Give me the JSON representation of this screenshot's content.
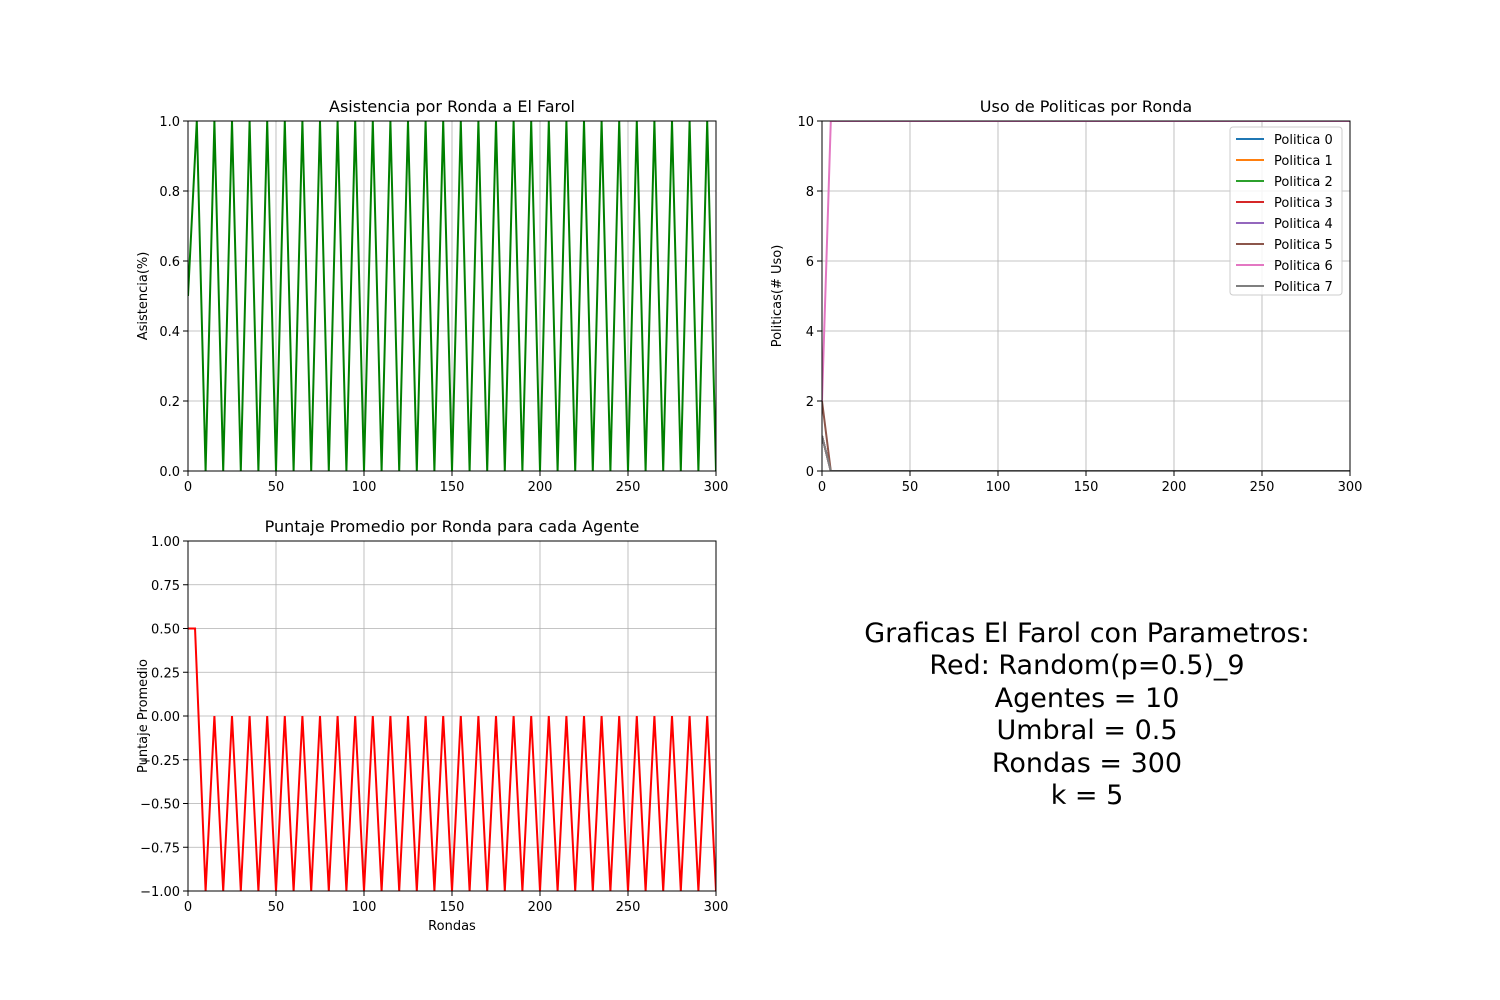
{
  "chart_data": [
    {
      "type": "line",
      "title": "Asistencia por Ronda a El Farol",
      "xlabel": "",
      "ylabel": "Asistencia(%)",
      "xlim": [
        0,
        300
      ],
      "ylim": [
        0,
        1
      ],
      "xticks": [
        0,
        50,
        100,
        150,
        200,
        250,
        300
      ],
      "yticks": [
        0.0,
        0.2,
        0.4,
        0.6,
        0.8,
        1.0
      ],
      "ytick_labels": [
        "0.0",
        "0.2",
        "0.4",
        "0.6",
        "0.8",
        "1.0"
      ],
      "grid": true,
      "series": [
        {
          "color": "#008000",
          "x": [
            0,
            5,
            10,
            15,
            20,
            25,
            30,
            35,
            40,
            45,
            50,
            55,
            60,
            65,
            70,
            75,
            80,
            85,
            90,
            95,
            100,
            105,
            110,
            115,
            120,
            125,
            130,
            135,
            140,
            145,
            150,
            155,
            160,
            165,
            170,
            175,
            180,
            185,
            190,
            195,
            200,
            205,
            210,
            215,
            220,
            225,
            230,
            235,
            240,
            245,
            250,
            255,
            260,
            265,
            270,
            275,
            280,
            285,
            290,
            295,
            300
          ],
          "y": [
            0.5,
            1,
            0,
            1,
            0,
            1,
            0,
            1,
            0,
            1,
            0,
            1,
            0,
            1,
            0,
            1,
            0,
            1,
            0,
            1,
            0,
            1,
            0,
            1,
            0,
            1,
            0,
            1,
            0,
            1,
            0,
            1,
            0,
            1,
            0,
            1,
            0,
            1,
            0,
            1,
            0,
            1,
            0,
            1,
            0,
            1,
            0,
            1,
            0,
            1,
            0,
            1,
            0,
            1,
            0,
            1,
            0,
            1,
            0,
            1,
            0
          ]
        }
      ]
    },
    {
      "type": "line",
      "title": "Uso de Politicas por Ronda",
      "xlabel": "",
      "ylabel": "Politicas(# Uso)",
      "xlim": [
        0,
        300
      ],
      "ylim": [
        0,
        10
      ],
      "xticks": [
        0,
        50,
        100,
        150,
        200,
        250,
        300
      ],
      "yticks": [
        0,
        2,
        4,
        6,
        8,
        10
      ],
      "ytick_labels": [
        "0",
        "2",
        "4",
        "6",
        "8",
        "10"
      ],
      "grid": true,
      "legend": "top-right",
      "series": [
        {
          "name": "Politica 0",
          "color": "#1f77b4",
          "x": [
            0,
            5,
            300
          ],
          "y": [
            1,
            0,
            0
          ]
        },
        {
          "name": "Politica 1",
          "color": "#ff7f0e",
          "x": [
            0,
            5,
            300
          ],
          "y": [
            1,
            0,
            0
          ]
        },
        {
          "name": "Politica 2",
          "color": "#2ca02c",
          "x": [
            0,
            5,
            300
          ],
          "y": [
            1,
            0,
            0
          ]
        },
        {
          "name": "Politica 3",
          "color": "#d62728",
          "x": [
            0,
            5,
            300
          ],
          "y": [
            1,
            0,
            0
          ]
        },
        {
          "name": "Politica 4",
          "color": "#9467bd",
          "x": [
            0,
            5,
            300
          ],
          "y": [
            1,
            0,
            0
          ]
        },
        {
          "name": "Politica 5",
          "color": "#8c564b",
          "x": [
            0,
            5,
            300
          ],
          "y": [
            2,
            0,
            0
          ]
        },
        {
          "name": "Politica 6",
          "color": "#e377c2",
          "x": [
            0,
            5,
            300
          ],
          "y": [
            2,
            10,
            10
          ]
        },
        {
          "name": "Politica 7",
          "color": "#7f7f7f",
          "x": [
            0,
            5,
            300
          ],
          "y": [
            1,
            0,
            0
          ]
        }
      ]
    },
    {
      "type": "line",
      "title": "Puntaje Promedio por Ronda para cada Agente",
      "xlabel": "Rondas",
      "ylabel": "Puntaje Promedio",
      "xlim": [
        0,
        300
      ],
      "ylim": [
        -1,
        1
      ],
      "xticks": [
        0,
        50,
        100,
        150,
        200,
        250,
        300
      ],
      "yticks": [
        -1.0,
        -0.75,
        -0.5,
        -0.25,
        0.0,
        0.25,
        0.5,
        0.75,
        1.0
      ],
      "ytick_labels": [
        "−1.00",
        "−0.75",
        "−0.50",
        "−0.25",
        "0.00",
        "0.25",
        "0.50",
        "0.75",
        "1.00"
      ],
      "grid": true,
      "series": [
        {
          "color": "#ff0000",
          "x": [
            0,
            4,
            10,
            15,
            20,
            25,
            30,
            35,
            40,
            45,
            50,
            55,
            60,
            65,
            70,
            75,
            80,
            85,
            90,
            95,
            100,
            105,
            110,
            115,
            120,
            125,
            130,
            135,
            140,
            145,
            150,
            155,
            160,
            165,
            170,
            175,
            180,
            185,
            190,
            195,
            200,
            205,
            210,
            215,
            220,
            225,
            230,
            235,
            240,
            245,
            250,
            255,
            260,
            265,
            270,
            275,
            280,
            285,
            290,
            295,
            300
          ],
          "y": [
            0.5,
            0.5,
            -1,
            0,
            -1,
            0,
            -1,
            0,
            -1,
            0,
            -1,
            0,
            -1,
            0,
            -1,
            0,
            -1,
            0,
            -1,
            0,
            -1,
            0,
            -1,
            0,
            -1,
            0,
            -1,
            0,
            -1,
            0,
            -1,
            0,
            -1,
            0,
            -1,
            0,
            -1,
            0,
            -1,
            0,
            -1,
            0,
            -1,
            0,
            -1,
            0,
            -1,
            0,
            -1,
            0,
            -1,
            0,
            -1,
            0,
            -1,
            0,
            -1,
            0,
            -1,
            0,
            -1
          ]
        }
      ]
    }
  ],
  "info_text": [
    "Graficas El Farol con Parametros:",
    "Red: Random(p=0.5)_9",
    "Agentes = 10",
    "Umbral = 0.5",
    "Rondas = 300",
    "k = 5"
  ]
}
